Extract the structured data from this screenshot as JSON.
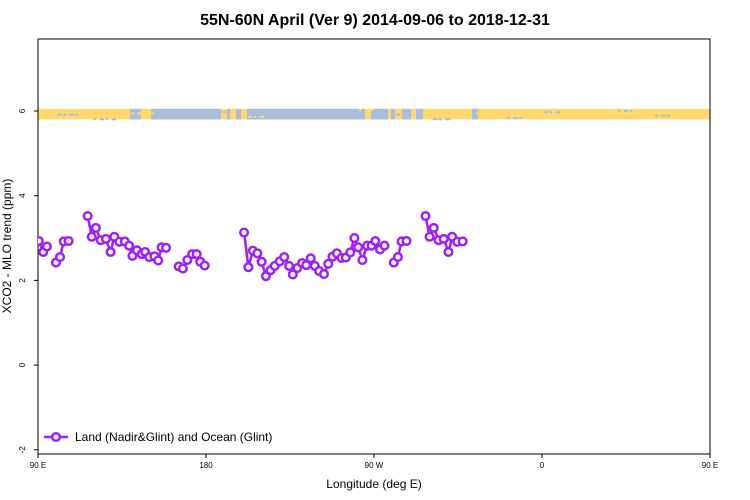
{
  "chart_data": {
    "type": "line",
    "title": "55N-60N April (Ver 9)   2014-09-06 to 2018-12-31",
    "xlabel": "Longitude (deg E)",
    "ylabel": "XCO2 - MLO trend (ppm)",
    "xlim": [
      90,
      450
    ],
    "ylim": [
      -2.1,
      7.7
    ],
    "x_ticks": [
      {
        "value": 90,
        "label": "90 E"
      },
      {
        "value": 180,
        "label": "180"
      },
      {
        "value": 270,
        "label": "90 W"
      },
      {
        "value": 360,
        "label": "0"
      },
      {
        "value": 450,
        "label": "90 E"
      },
      {
        "value": 540,
        "label": "180"
      }
    ],
    "y_ticks": [
      -2,
      0,
      2,
      4,
      6
    ],
    "grid": false,
    "legend": {
      "position": "bottom-left",
      "label": "Land (Nadir&Glint) and Ocean (Glint)"
    },
    "series_color": "#a020f0",
    "land_ocean_band": {
      "y_range": [
        5.8,
        6.05
      ],
      "land_color": "#ffd86e",
      "ocean_color": "#a8bedc"
    },
    "series": [
      {
        "name": "Land (Nadir&Glint) and Ocean (Glint)",
        "segments": [
          [
            [
              90.4,
              2.93
            ],
            [
              92.8,
              2.67
            ],
            [
              94.8,
              2.8
            ]
          ],
          [
            [
              99.6,
              2.42
            ],
            [
              101.8,
              2.55
            ],
            [
              103.8,
              2.92
            ],
            [
              106.4,
              2.93
            ]
          ],
          [
            [
              116.6,
              3.52
            ],
            [
              118.8,
              3.03
            ],
            [
              121,
              3.24
            ],
            [
              123.6,
              2.95
            ],
            [
              126.4,
              2.98
            ],
            [
              128.9,
              2.67
            ],
            [
              130.9,
              3.03
            ],
            [
              133.6,
              2.91
            ],
            [
              136.5,
              2.92
            ],
            [
              138.8,
              2.82
            ],
            [
              140.6,
              2.58
            ],
            [
              143,
              2.71
            ],
            [
              145.6,
              2.62
            ],
            [
              147.4,
              2.67
            ],
            [
              149.6,
              2.55
            ],
            [
              152.4,
              2.57
            ],
            [
              154.4,
              2.47
            ],
            [
              156.2,
              2.78
            ],
            [
              158.6,
              2.77
            ]
          ],
          [
            [
              165.4,
              2.33
            ],
            [
              167.6,
              2.28
            ],
            [
              170,
              2.48
            ],
            [
              172.6,
              2.62
            ],
            [
              175,
              2.62
            ],
            [
              176.9,
              2.44
            ],
            [
              179.3,
              2.35
            ]
          ],
          [
            [
              200.4,
              3.13
            ],
            [
              202.7,
              2.31
            ],
            [
              205.1,
              2.7
            ],
            [
              207.5,
              2.64
            ],
            [
              209.8,
              2.44
            ],
            [
              212.1,
              2.1
            ],
            [
              214.6,
              2.24
            ],
            [
              216.8,
              2.34
            ],
            [
              219.5,
              2.45
            ],
            [
              221.9,
              2.55
            ],
            [
              224.5,
              2.34
            ],
            [
              226.5,
              2.14
            ],
            [
              228.9,
              2.29
            ],
            [
              231.5,
              2.41
            ],
            [
              233.7,
              2.36
            ],
            [
              236.1,
              2.52
            ],
            [
              238.3,
              2.34
            ],
            [
              240.6,
              2.22
            ],
            [
              243.2,
              2.15
            ],
            [
              245.5,
              2.39
            ],
            [
              247.8,
              2.56
            ],
            [
              250.1,
              2.64
            ],
            [
              252.6,
              2.53
            ],
            [
              254.9,
              2.54
            ],
            [
              257.3,
              2.66
            ],
            [
              259.5,
              3.0
            ],
            [
              261.5,
              2.78
            ],
            [
              263.8,
              2.48
            ],
            [
              266.3,
              2.82
            ],
            [
              268.7,
              2.82
            ],
            [
              270.7,
              2.93
            ],
            [
              273.2,
              2.73
            ],
            [
              275.6,
              2.82
            ]
          ],
          [
            [
              280.6,
              2.42
            ],
            [
              282.8,
              2.55
            ],
            [
              284.8,
              2.92
            ],
            [
              287.4,
              2.93
            ]
          ],
          [
            [
              297.6,
              3.52
            ],
            [
              299.8,
              3.03
            ],
            [
              302,
              3.24
            ],
            [
              304.6,
              2.95
            ],
            [
              307.4,
              2.98
            ],
            [
              309.9,
              2.67
            ],
            [
              311.9,
              3.03
            ],
            [
              314.6,
              2.91
            ],
            [
              317.5,
              2.92
            ]
          ]
        ]
      }
    ]
  }
}
